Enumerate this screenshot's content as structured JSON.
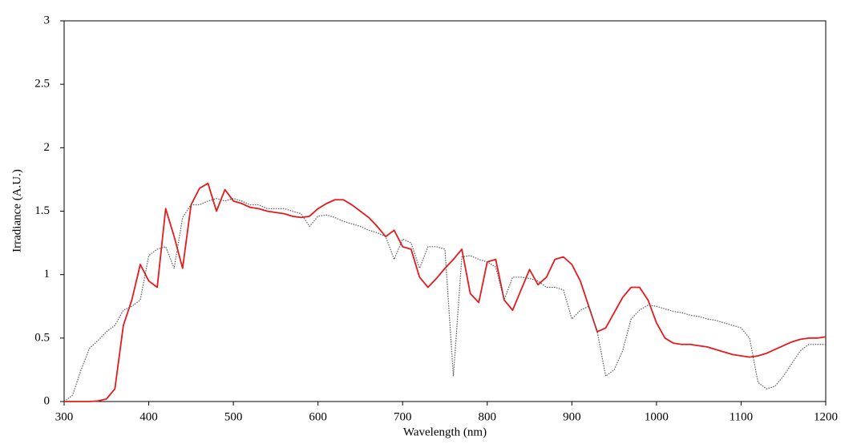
{
  "chart_data": {
    "type": "line",
    "xlabel": "Wavelength (nm)",
    "ylabel": "Irradiance (A.U.)",
    "x": [
      300,
      310,
      320,
      330,
      340,
      350,
      360,
      370,
      380,
      390,
      400,
      410,
      420,
      430,
      440,
      450,
      460,
      470,
      480,
      490,
      500,
      510,
      520,
      530,
      540,
      550,
      560,
      570,
      580,
      590,
      600,
      610,
      620,
      630,
      640,
      650,
      660,
      670,
      680,
      690,
      700,
      710,
      720,
      730,
      740,
      750,
      760,
      770,
      780,
      790,
      800,
      810,
      820,
      830,
      840,
      850,
      860,
      870,
      880,
      890,
      900,
      910,
      920,
      930,
      940,
      950,
      960,
      970,
      980,
      990,
      1000,
      1010,
      1020,
      1030,
      1040,
      1050,
      1060,
      1070,
      1080,
      1090,
      1100,
      1110,
      1120,
      1130,
      1140,
      1150,
      1160,
      1170,
      1180,
      1190,
      1200
    ],
    "series": [
      {
        "color": "#e8191c",
        "style": "solid",
        "values": [
          0,
          0,
          0,
          0,
          0.005,
          0.02,
          0.1,
          0.6,
          0.8,
          1.08,
          0.95,
          0.9,
          1.52,
          1.3,
          1.05,
          1.55,
          1.68,
          1.72,
          1.5,
          1.67,
          1.58,
          1.56,
          1.53,
          1.52,
          1.5,
          1.49,
          1.48,
          1.46,
          1.45,
          1.46,
          1.52,
          1.56,
          1.59,
          1.59,
          1.55,
          1.5,
          1.45,
          1.38,
          1.3,
          1.35,
          1.22,
          1.2,
          0.98,
          0.9,
          0.97,
          1.05,
          1.12,
          1.2,
          0.85,
          0.78,
          1.1,
          1.12,
          0.8,
          0.72,
          0.88,
          1.04,
          0.92,
          0.98,
          1.12,
          1.14,
          1.08,
          0.95,
          0.75,
          0.55,
          0.58,
          0.7,
          0.82,
          0.9,
          0.9,
          0.8,
          0.62,
          0.5,
          0.46,
          0.45,
          0.45,
          0.44,
          0.43,
          0.41,
          0.39,
          0.37,
          0.36,
          0.35,
          0.36,
          0.38,
          0.41,
          0.44,
          0.47,
          0.49,
          0.5,
          0.5,
          0.51
        ]
      },
      {
        "color": "#555555",
        "style": "dotted",
        "values": [
          0,
          0.05,
          0.25,
          0.42,
          0.48,
          0.55,
          0.6,
          0.72,
          0.75,
          0.8,
          1.15,
          1.2,
          1.22,
          1.05,
          1.45,
          1.55,
          1.55,
          1.58,
          1.6,
          1.58,
          1.6,
          1.58,
          1.55,
          1.55,
          1.52,
          1.52,
          1.52,
          1.5,
          1.48,
          1.38,
          1.46,
          1.47,
          1.45,
          1.42,
          1.4,
          1.38,
          1.35,
          1.33,
          1.3,
          1.12,
          1.28,
          1.25,
          1.05,
          1.22,
          1.22,
          1.2,
          0.2,
          1.14,
          1.15,
          1.12,
          1.1,
          1.06,
          0.8,
          0.98,
          0.98,
          0.97,
          0.95,
          0.9,
          0.9,
          0.88,
          0.65,
          0.72,
          0.75,
          0.55,
          0.2,
          0.25,
          0.4,
          0.65,
          0.72,
          0.76,
          0.75,
          0.73,
          0.71,
          0.7,
          0.68,
          0.67,
          0.65,
          0.64,
          0.62,
          0.6,
          0.58,
          0.5,
          0.15,
          0.1,
          0.12,
          0.2,
          0.3,
          0.4,
          0.45,
          0.45,
          0.45
        ]
      }
    ],
    "xlim": [
      300,
      1200
    ],
    "xticks": [
      300,
      400,
      500,
      600,
      700,
      800,
      900,
      1000,
      1100,
      1200
    ],
    "ylim": [
      0,
      3
    ],
    "yticks": [
      0,
      0.5,
      1,
      1.5,
      2,
      2.5,
      3
    ],
    "grid": false
  }
}
